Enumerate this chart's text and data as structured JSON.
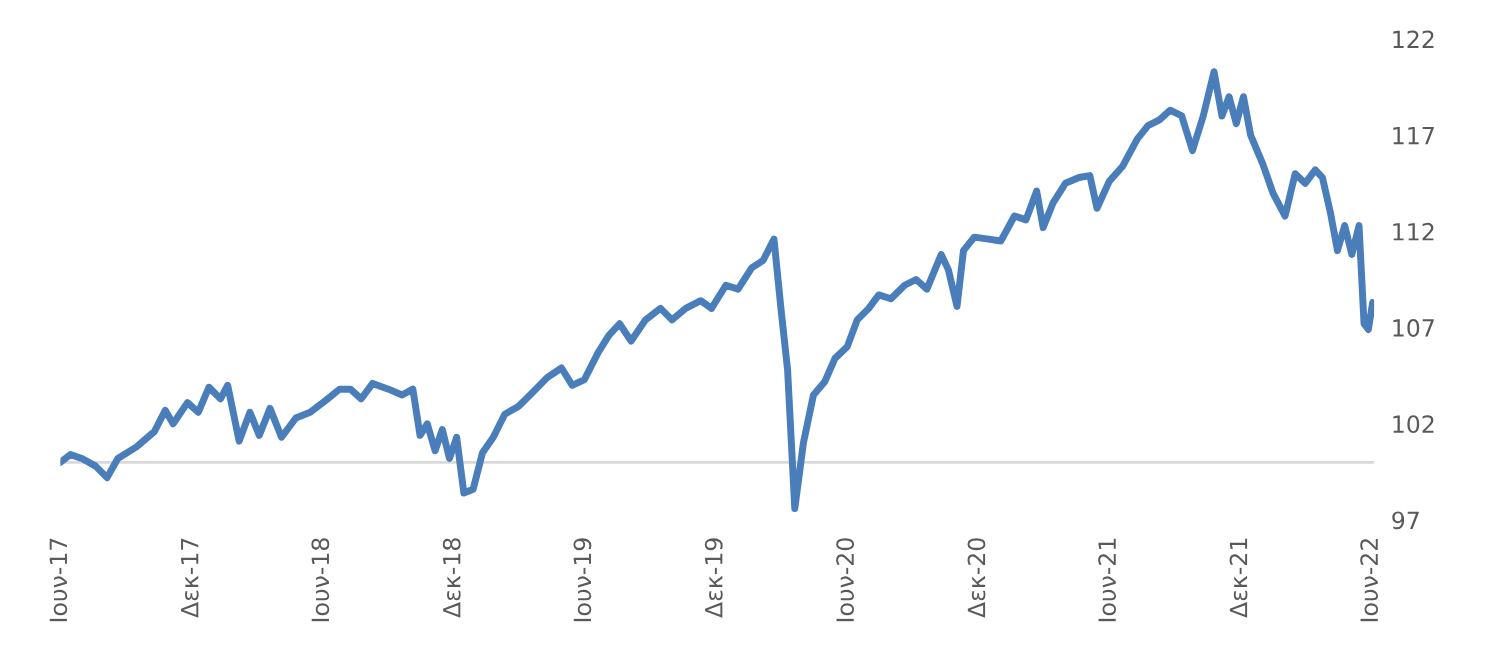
{
  "chart_data": {
    "type": "line",
    "x": [
      "2017-06-01",
      "2017-06-15",
      "2017-07-01",
      "2017-07-20",
      "2017-08-05",
      "2017-08-20",
      "2017-09-15",
      "2017-10-10",
      "2017-10-25",
      "2017-11-05",
      "2017-11-25",
      "2017-12-10",
      "2017-12-25",
      "2018-01-10",
      "2018-01-20",
      "2018-02-05",
      "2018-02-20",
      "2018-03-05",
      "2018-03-20",
      "2018-04-05",
      "2018-04-25",
      "2018-05-15",
      "2018-06-05",
      "2018-06-25",
      "2018-07-10",
      "2018-07-25",
      "2018-08-10",
      "2018-09-01",
      "2018-09-20",
      "2018-10-05",
      "2018-10-15",
      "2018-10-25",
      "2018-11-05",
      "2018-11-15",
      "2018-11-25",
      "2018-12-05",
      "2018-12-15",
      "2018-12-28",
      "2019-01-10",
      "2019-01-25",
      "2019-02-10",
      "2019-03-01",
      "2019-03-20",
      "2019-04-10",
      "2019-04-30",
      "2019-05-15",
      "2019-06-01",
      "2019-06-20",
      "2019-07-05",
      "2019-07-20",
      "2019-08-05",
      "2019-08-25",
      "2019-09-15",
      "2019-10-01",
      "2019-10-20",
      "2019-11-10",
      "2019-11-25",
      "2019-12-15",
      "2020-01-01",
      "2020-01-20",
      "2020-02-05",
      "2020-02-20",
      "2020-03-01",
      "2020-03-10",
      "2020-03-20",
      "2020-04-01",
      "2020-04-15",
      "2020-05-01",
      "2020-05-15",
      "2020-06-01",
      "2020-06-15",
      "2020-07-01",
      "2020-07-15",
      "2020-08-01",
      "2020-08-20",
      "2020-09-05",
      "2020-09-20",
      "2020-10-10",
      "2020-10-20",
      "2020-11-01",
      "2020-11-10",
      "2020-11-25",
      "2020-12-15",
      "2021-01-01",
      "2021-01-20",
      "2021-02-05",
      "2021-02-20",
      "2021-03-01",
      "2021-03-15",
      "2021-04-01",
      "2021-04-20",
      "2021-05-05",
      "2021-05-15",
      "2021-06-01",
      "2021-06-20",
      "2021-07-10",
      "2021-07-25",
      "2021-08-10",
      "2021-08-25",
      "2021-09-10",
      "2021-09-25",
      "2021-10-10",
      "2021-10-25",
      "2021-11-05",
      "2021-11-15",
      "2021-11-25",
      "2021-12-05",
      "2021-12-15",
      "2022-01-01",
      "2022-01-15",
      "2022-02-01",
      "2022-02-15",
      "2022-03-01",
      "2022-03-15",
      "2022-03-25",
      "2022-04-05",
      "2022-04-15",
      "2022-04-25",
      "2022-05-05",
      "2022-05-15",
      "2022-05-22",
      "2022-05-28",
      "2022-06-03"
    ],
    "series": [
      {
        "color": "#4a7ebb",
        "values": [
          100.0,
          100.4,
          100.2,
          99.8,
          99.2,
          100.2,
          100.8,
          101.6,
          102.7,
          102.0,
          103.1,
          102.6,
          103.9,
          103.3,
          104.0,
          101.1,
          102.6,
          101.4,
          102.8,
          101.3,
          102.3,
          102.6,
          103.2,
          103.8,
          103.8,
          103.3,
          104.1,
          103.8,
          103.5,
          103.8,
          101.4,
          102.0,
          100.6,
          101.7,
          100.2,
          101.3,
          98.4,
          98.6,
          100.5,
          101.3,
          102.5,
          102.9,
          103.6,
          104.4,
          104.9,
          104.0,
          104.3,
          105.7,
          106.6,
          107.2,
          106.3,
          107.4,
          108.0,
          107.4,
          108.0,
          108.4,
          108.0,
          109.2,
          109.0,
          110.1,
          110.5,
          111.6,
          107.9,
          104.8,
          97.6,
          101.0,
          103.5,
          104.2,
          105.4,
          106.0,
          107.4,
          108.0,
          108.7,
          108.5,
          109.2,
          109.5,
          109.0,
          110.8,
          110.0,
          108.1,
          111.0,
          111.7,
          111.6,
          111.5,
          112.8,
          112.6,
          114.1,
          112.2,
          113.5,
          114.5,
          114.8,
          114.9,
          113.2,
          114.6,
          115.4,
          116.8,
          117.5,
          117.8,
          118.3,
          118.0,
          116.2,
          118.0,
          120.3,
          118.0,
          119.0,
          117.6,
          119.0,
          117.0,
          115.5,
          114.0,
          112.8,
          115.0,
          114.5,
          115.2,
          114.8,
          113.0,
          111.0,
          112.3,
          110.8,
          112.3,
          107.2,
          106.9,
          108.3
        ]
      }
    ],
    "ylim": [
      97,
      122
    ],
    "yticks": [
      97,
      102,
      107,
      112,
      117,
      122
    ],
    "xlim": [
      "2017-06-01",
      "2022-06-05"
    ],
    "xticks": [
      {
        "value": "2017-06-01",
        "label": "Ιουν-17"
      },
      {
        "value": "2017-12-01",
        "label": "Δεκ-17"
      },
      {
        "value": "2018-06-01",
        "label": "Ιουν-18"
      },
      {
        "value": "2018-12-01",
        "label": "Δεκ-18"
      },
      {
        "value": "2019-06-01",
        "label": "Ιουν-19"
      },
      {
        "value": "2019-12-01",
        "label": "Δεκ-19"
      },
      {
        "value": "2020-06-01",
        "label": "Ιουν-20"
      },
      {
        "value": "2020-12-01",
        "label": "Δεκ-20"
      },
      {
        "value": "2021-06-01",
        "label": "Ιουν-21"
      },
      {
        "value": "2021-12-01",
        "label": "Δεκ-21"
      },
      {
        "value": "2022-06-01",
        "label": "Ιουν-22"
      }
    ],
    "ref_lines": [
      {
        "axis": "y",
        "value": 100,
        "color": "#d9d9d9"
      }
    ],
    "grid": false,
    "legend": false,
    "marker": "none",
    "line_style": "solid"
  }
}
